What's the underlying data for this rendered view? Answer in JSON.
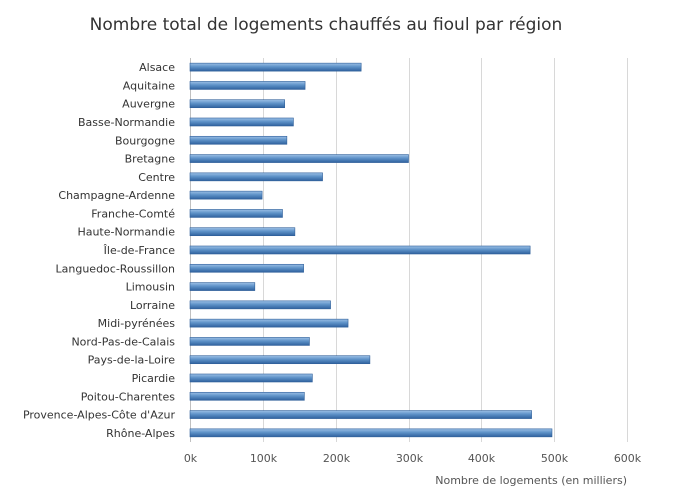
{
  "chart_data": {
    "type": "bar",
    "orientation": "horizontal",
    "title": "Nombre total de logements chauffés au fioul par région",
    "xlabel": "Nombre de logements (en milliers)",
    "ylabel": "",
    "xlim": [
      0,
      600000
    ],
    "tick_values": [
      0,
      100000,
      200000,
      300000,
      400000,
      500000,
      600000
    ],
    "tick_labels": [
      "0k",
      "100k",
      "200k",
      "300k",
      "400k",
      "500k",
      "600k"
    ],
    "grid": true,
    "legend": "none",
    "categories": [
      "Alsace",
      "Aquitaine",
      "Auvergne",
      "Basse-Normandie",
      "Bourgogne",
      "Bretagne",
      "Centre",
      "Champagne-Ardenne",
      "Franche-Comté",
      "Haute-Normandie",
      "Île-de-France",
      "Languedoc-Roussillon",
      "Limousin",
      "Lorraine",
      "Midi-pyrénées",
      "Nord-Pas-de-Calais",
      "Pays-de-la-Loire",
      "Picardie",
      "Poitou-Charentes",
      "Provence-Alpes-Côte d'Azur",
      "Rhône-Alpes"
    ],
    "values": [
      235000,
      158000,
      130000,
      142000,
      133000,
      300000,
      182000,
      99000,
      127000,
      144000,
      467000,
      156000,
      89000,
      193000,
      217000,
      164000,
      247000,
      168000,
      157000,
      469000,
      497000
    ],
    "bar_color": "#4a7fb8"
  }
}
